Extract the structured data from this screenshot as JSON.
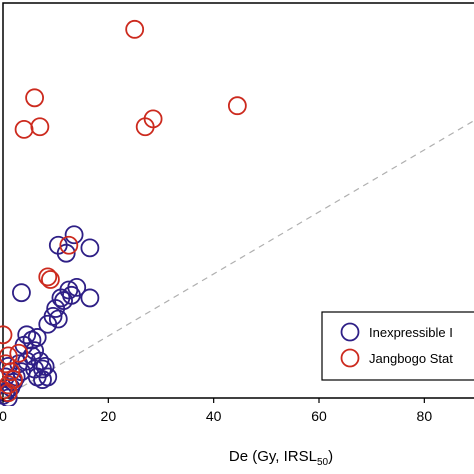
{
  "chart_data": {
    "type": "scatter",
    "xlabel": "De (Gy, IRSL50)",
    "xlabel_parts": {
      "main": "De (Gy, IRSL",
      "sub": "50",
      "close": ")"
    },
    "ylabel": "",
    "xlim": [
      0,
      90
    ],
    "ylim": [
      0,
      75
    ],
    "x_ticks": [
      "0",
      "20",
      "40",
      "60",
      "80"
    ],
    "x_tick_values": [
      0,
      20,
      40,
      60,
      80
    ],
    "grid": false,
    "legend_position": "bottom-right",
    "reference_line": {
      "style": "dashed",
      "color": "#b0b0b0",
      "from": [
        0,
        0
      ],
      "to": [
        90,
        53
      ]
    },
    "series": [
      {
        "name": "Inexpressible I",
        "color": "#2e1f86",
        "marker": "open-circle",
        "points": [
          [
            13.5,
            31
          ],
          [
            10.5,
            29
          ],
          [
            12,
            27.5
          ],
          [
            16.5,
            28.5
          ],
          [
            3.5,
            20
          ],
          [
            12.5,
            20.5
          ],
          [
            14,
            21
          ],
          [
            13,
            19.5
          ],
          [
            11.5,
            18.5
          ],
          [
            10,
            17
          ],
          [
            9.5,
            15.5
          ],
          [
            10.5,
            15
          ],
          [
            8.5,
            14
          ],
          [
            16.5,
            19
          ],
          [
            11,
            19
          ],
          [
            6.5,
            11.5
          ],
          [
            6,
            9
          ],
          [
            4,
            10
          ],
          [
            5.5,
            8
          ],
          [
            4.5,
            7
          ],
          [
            3,
            6.5
          ],
          [
            5.5,
            11
          ],
          [
            3.5,
            5
          ],
          [
            6,
            5.5
          ],
          [
            6.5,
            4
          ],
          [
            7.5,
            5.5
          ],
          [
            8,
            6
          ],
          [
            7,
            7
          ],
          [
            7.5,
            3.5
          ],
          [
            2,
            3
          ],
          [
            1.5,
            2
          ],
          [
            0.5,
            1
          ],
          [
            0.5,
            4
          ],
          [
            2.5,
            4
          ],
          [
            1,
            6
          ],
          [
            0,
            0.5
          ],
          [
            1,
            0
          ],
          [
            8.5,
            4
          ],
          [
            4.5,
            12
          ]
        ]
      },
      {
        "name": "Jangbogo Stat",
        "color": "#cc2a1e",
        "marker": "open-circle",
        "points": [
          [
            25,
            70
          ],
          [
            6,
            57
          ],
          [
            4,
            51
          ],
          [
            7,
            51.5
          ],
          [
            27,
            51.5
          ],
          [
            28.5,
            53
          ],
          [
            44.5,
            55.5
          ],
          [
            12.5,
            29
          ],
          [
            9,
            22.5
          ],
          [
            8.5,
            23
          ],
          [
            0,
            12
          ],
          [
            1,
            8
          ],
          [
            3,
            8.5
          ],
          [
            0.5,
            6.5
          ],
          [
            2,
            3.5
          ],
          [
            1,
            2.5
          ],
          [
            1.5,
            5
          ],
          [
            0,
            1.5
          ],
          [
            1,
            1
          ]
        ]
      }
    ]
  },
  "legend": {
    "entries": [
      {
        "label": "Inexpressible I",
        "color": "#2e1f86"
      },
      {
        "label": "Jangbogo Stat",
        "color": "#cc2a1e"
      }
    ]
  }
}
